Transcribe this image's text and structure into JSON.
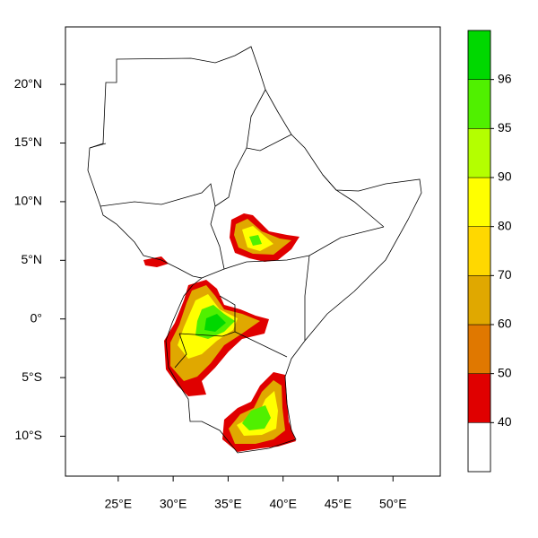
{
  "map": {
    "xlim": [
      20.2,
      54.3
    ],
    "ylim": [
      -13.4,
      24.9
    ],
    "xticks": [
      {
        "value": 25,
        "label": "25°E"
      },
      {
        "value": 30,
        "label": "30°E"
      },
      {
        "value": 35,
        "label": "35°E"
      },
      {
        "value": 40,
        "label": "40°E"
      },
      {
        "value": 45,
        "label": "45°E"
      },
      {
        "value": 50,
        "label": "50°E"
      }
    ],
    "yticks": [
      {
        "value": 20,
        "label": "20°N"
      },
      {
        "value": 15,
        "label": "15°N"
      },
      {
        "value": 10,
        "label": "10°N"
      },
      {
        "value": 5,
        "label": "5°N"
      },
      {
        "value": 0,
        "label": "0°"
      },
      {
        "value": -5,
        "label": "5°S"
      },
      {
        "value": -10,
        "label": "10°S"
      }
    ]
  },
  "colorbar": {
    "levels": [
      40,
      50,
      60,
      70,
      80,
      90,
      95,
      96
    ],
    "colors": [
      "#ffffff",
      "#e00000",
      "#e07800",
      "#e0a800",
      "#ffd800",
      "#ffff00",
      "#b4ff00",
      "#50f000",
      "#00d800"
    ]
  }
}
